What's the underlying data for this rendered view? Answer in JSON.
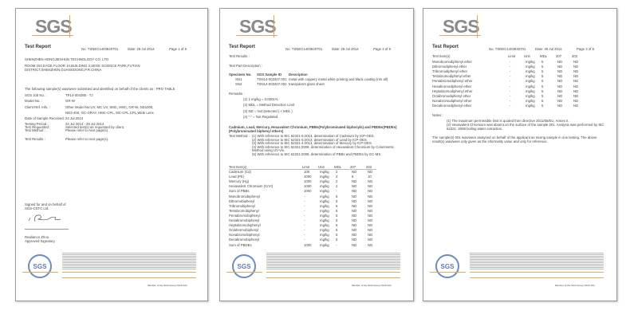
{
  "common": {
    "logo": "SGS",
    "title": "Test Report",
    "report_no": "No. TSNEC1403940701",
    "date": "Date: 29 Jul 2014",
    "member": "Member of the SGS Group (SGS SA)"
  },
  "page1": {
    "page_label": "Page 1 of 5",
    "company": "SHENZHEN HONGJIESHUN TECHNOLOGY CO. LTD",
    "address1": "ROOM 204,EAGE FLOOR 10,BUILDING 3,SEGE SCIENCE PARK,FUTIAN",
    "address2": "DISTRICT,SHENZHEN,GUANGDONG,P.R.CHINA",
    "intro": "The following sample(s) was/were submitted and identified on behalf of the clients as : PRO TABLE",
    "fields": [
      {
        "label": "SGS Job No. :",
        "value": "TP14-004285 - TJ"
      },
      {
        "label": "Model No. :",
        "value": "GR-W"
      },
      {
        "label": "Client Ref. Info. :",
        "value": "Other Model No:UV, MC UV, SMC, HMC, GR-W, ND1000,"
      },
      {
        "label": "",
        "value": "ND2-400, GC-GRAY, HMC-CPL, MC-CPL,CPL,Wide Lens"
      },
      {
        "label": "Date of Sample Received :",
        "value": "24 Jul 2014"
      },
      {
        "label": "Testing Period :",
        "value": "24 Jul 2014 - 29 Jul 2014"
      },
      {
        "label": "Test Requested :",
        "value": "Selected test(s) as requested by client."
      },
      {
        "label": "Test Method :",
        "value": "Please refer to next page(s)."
      },
      {
        "label": "Test Results :",
        "value": "Please refer to next page(s)."
      }
    ],
    "signed1": "Signed for and on behalf of",
    "signed2": "SGS-CSTC Ltd.",
    "signer": "Realiance Zhou",
    "signer_title": "Approved Signatory"
  },
  "page2": {
    "page_label": "Page 2 of 5",
    "results": "Test Results :",
    "part_desc": "Test Part Description :",
    "spec_headers": [
      "Specimen No.",
      "SGS Sample ID",
      "Description"
    ],
    "specimens": [
      [
        "SN1",
        "TSN14-003407.001",
        "metal with coppery metal white printing and black coating (rim all)"
      ],
      [
        "SN2",
        "TSN14-003407.002",
        "transparent glass sheet"
      ]
    ],
    "remarks_label": "Remarks :",
    "remarks": [
      "(1) 1 mg/kg = 0.0001%",
      "(2) MDL = Method Detection Limit",
      "(3) ND = Not Detected ( < MDL )",
      "(4) \"-\" = Not Regulated"
    ],
    "section_title1": "Cadmium, Lead, Mercury, Hexavalent Chromium, PBBs(Polybrominated biphenyls) and PBDEs(PBDEs)",
    "section_title2": "(Polybrominated biphenyl ethers)",
    "method_label": "Test Method :",
    "methods": [
      "(1) With reference to IEC 62321-5:2013, determination of Cadmium by ICP-OES.",
      "(2) With reference to IEC 62321-5:2013, determination of Lead by ICP-OES.",
      "(3) With reference to IEC 62321-4:2013, determination of Mercury by ICP-OES.",
      "(4) With reference to IEC 62321:2008, determination of Hexavalent Chromium by Colorimetric",
      "Method using UV-Vis.",
      "(5) With reference to IEC 62321:2008, determination of PBBs and PBDEs by GC-MS."
    ],
    "table_headers": [
      "Test Item(s)",
      "Limit",
      "Unit",
      "MDL",
      "207",
      "202"
    ],
    "rows": [
      [
        "Cadmium (Cd)",
        "100",
        "mg/kg",
        "2",
        "ND",
        "ND"
      ],
      [
        "Lead (Pb)",
        "1000",
        "mg/kg",
        "2",
        "8",
        "10"
      ],
      [
        "Mercury (Hg)",
        "1000",
        "mg/kg",
        "2",
        "ND",
        "ND"
      ],
      [
        "Hexavalent Chromium (CrVI)",
        "1000",
        "mg/kg",
        "2",
        "ND",
        "ND"
      ],
      [
        "Sum of PBBs",
        "1000",
        "mg/kg",
        "-",
        "ND",
        "ND"
      ],
      [
        "Monobromobiphenyl",
        "-",
        "mg/kg",
        "5",
        "ND",
        "ND"
      ],
      [
        "Dibromobiphenyl",
        "-",
        "mg/kg",
        "5",
        "ND",
        "ND"
      ],
      [
        "Tribromobiphenyl",
        "-",
        "mg/kg",
        "5",
        "ND",
        "ND"
      ],
      [
        "Tetrabromobiphenyl",
        "-",
        "mg/kg",
        "5",
        "ND",
        "ND"
      ],
      [
        "Pentabromobiphenyl",
        "-",
        "mg/kg",
        "5",
        "ND",
        "ND"
      ],
      [
        "Hexabromobiphenyl",
        "-",
        "mg/kg",
        "5",
        "ND",
        "ND"
      ],
      [
        "Heptabromobiphenyl",
        "-",
        "mg/kg",
        "5",
        "ND",
        "ND"
      ],
      [
        "Octabromobiphenyl",
        "-",
        "mg/kg",
        "5",
        "ND",
        "ND"
      ],
      [
        "Nonabromobiphenyl",
        "-",
        "mg/kg",
        "5",
        "ND",
        "ND"
      ],
      [
        "Decabromobiphenyl",
        "-",
        "mg/kg",
        "5",
        "ND",
        "ND"
      ],
      [
        "Sum of PBDEs",
        "1000",
        "mg/kg",
        "-",
        "ND",
        "ND"
      ]
    ]
  },
  "page3": {
    "page_label": "Page 3 of 5",
    "table_headers": [
      "Test Item(s)",
      "Limit",
      "Unit",
      "MDL",
      "207",
      "202"
    ],
    "rows": [
      [
        "Monobromodiphenyl ether",
        "-",
        "mg/kg",
        "5",
        "ND",
        "ND"
      ],
      [
        "Dibromodiphenyl ether",
        "-",
        "mg/kg",
        "5",
        "ND",
        "ND"
      ],
      [
        "Tribromodiphenyl ether",
        "-",
        "mg/kg",
        "5",
        "ND",
        "ND"
      ],
      [
        "Tetrabromodiphenyl ether",
        "-",
        "mg/kg",
        "5",
        "ND",
        "ND"
      ],
      [
        "Pentabromodiphenyl ether",
        "-",
        "mg/kg",
        "5",
        "ND",
        "ND"
      ],
      [
        "Hexabromodiphenyl ether",
        "-",
        "mg/kg",
        "5",
        "ND",
        "ND"
      ],
      [
        "Heptabromodiphenyl ether",
        "-",
        "mg/kg",
        "5",
        "ND",
        "ND"
      ],
      [
        "Octabromodiphenyl ether",
        "-",
        "mg/kg",
        "5",
        "ND",
        "ND"
      ],
      [
        "Nonabromodiphenyl ether",
        "-",
        "mg/kg",
        "5",
        "ND",
        "ND"
      ],
      [
        "Decabromodiphenyl ether",
        "-",
        "mg/kg",
        "5",
        "ND",
        "ND"
      ]
    ],
    "notes_label": "Notes :",
    "notes": [
      "(1) The maximum permissible limit is quoted from directive 2011/65/EU, Annex II.",
      "(2) Hexavalent Chromium was absent on the surface of the sample 001. Analysis was performed by IEC",
      "62321: 2008 boiling water extraction."
    ],
    "statement1": "The sample(s) 001 was/were analyzed on behalf of the applicant as mixing sample in one testing.  The above",
    "statement2": "result(s) was/were only given as the informality value and only for reference."
  }
}
